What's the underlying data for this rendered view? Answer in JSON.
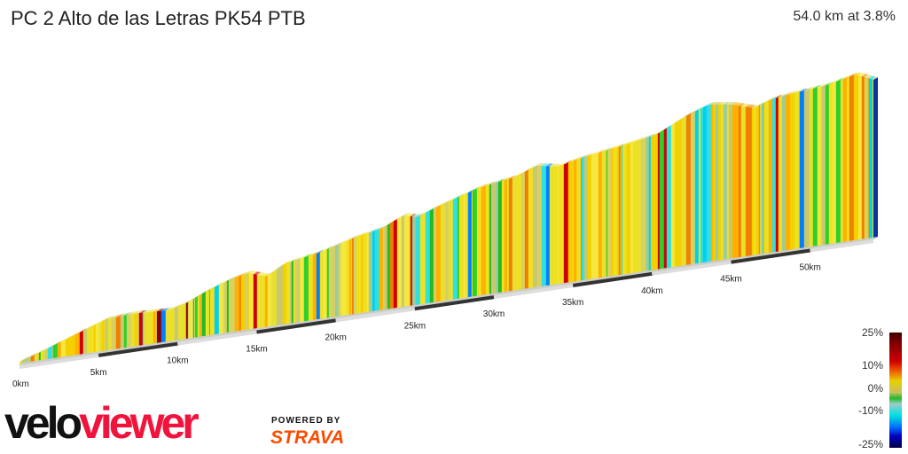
{
  "header": {
    "title": "PC 2 Alto de las Letras PK54 PTB",
    "summary": "54.0 km at 3.8%"
  },
  "chart_data": {
    "type": "area",
    "title": "PC 2 Alto de las Letras PK54 PTB",
    "distance_km": 54.0,
    "average_grade_pct": 3.8,
    "x_ticks": [
      "0km",
      "5km",
      "10km",
      "15km",
      "20km",
      "25km",
      "30km",
      "35km",
      "40km",
      "45km",
      "50km"
    ],
    "x_range_km": [
      0,
      54.0
    ],
    "colorbar": {
      "labels": [
        "25%",
        "10%",
        "0%",
        "-10%",
        "-25%"
      ],
      "range_pct": [
        -25,
        25
      ]
    }
  },
  "branding": {
    "logo_dark": "velo",
    "logo_red": "viewer",
    "powered": "POWERED BY",
    "strava": "STRAVA"
  },
  "colors": {
    "logo_red": "#f0143c",
    "strava_orange": "#fc4c02"
  }
}
